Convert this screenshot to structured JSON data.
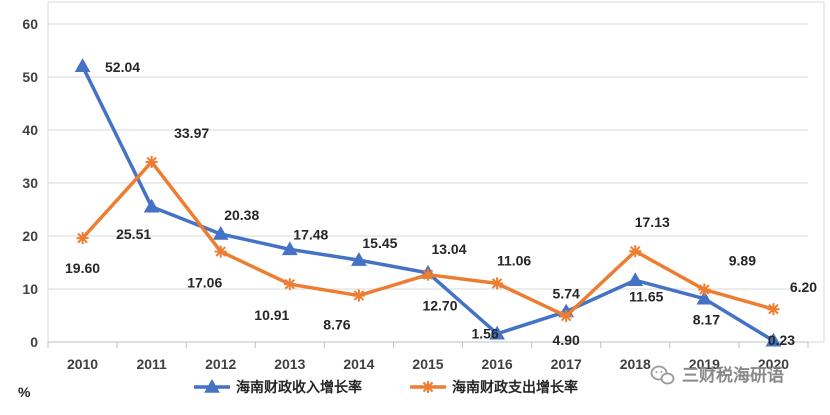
{
  "chart_data": {
    "type": "line",
    "x": [
      "2010",
      "2011",
      "2012",
      "2013",
      "2014",
      "2015",
      "2016",
      "2017",
      "2018",
      "2019",
      "2020"
    ],
    "series": [
      {
        "name": "海南财政收入增长率",
        "values": [
          52.04,
          25.51,
          20.38,
          17.48,
          15.45,
          13.04,
          1.56,
          5.74,
          11.65,
          8.17,
          0.23
        ],
        "color": "#4472C4",
        "marker": "triangle"
      },
      {
        "name": "海南财政支出增长率",
        "values": [
          19.6,
          33.97,
          17.06,
          10.91,
          8.76,
          12.7,
          11.06,
          4.9,
          17.13,
          9.89,
          6.2
        ],
        "color": "#ED7D31",
        "marker": "star"
      }
    ],
    "data_labels": {
      "海南财政收入增长率": [
        "52.04",
        "25.51",
        "20.38",
        "17.48",
        "15.45",
        "13.04",
        "1.56",
        "5.74",
        "11.65",
        "8.17",
        "0.23"
      ],
      "海南财政支出增长率": [
        "19.60",
        "33.97",
        "17.06",
        "10.91",
        "8.76",
        "12.70",
        "11.06",
        "4.90",
        "17.13",
        "9.89",
        "6.20"
      ]
    },
    "y_ticks": [
      "0",
      "10",
      "20",
      "30",
      "40",
      "50",
      "60"
    ],
    "ylim": [
      0,
      60
    ],
    "ylabel": "%",
    "grid": true,
    "legend": "bottom"
  },
  "watermark": {
    "text": "三财税海研语",
    "icon": "wechat-icon"
  }
}
